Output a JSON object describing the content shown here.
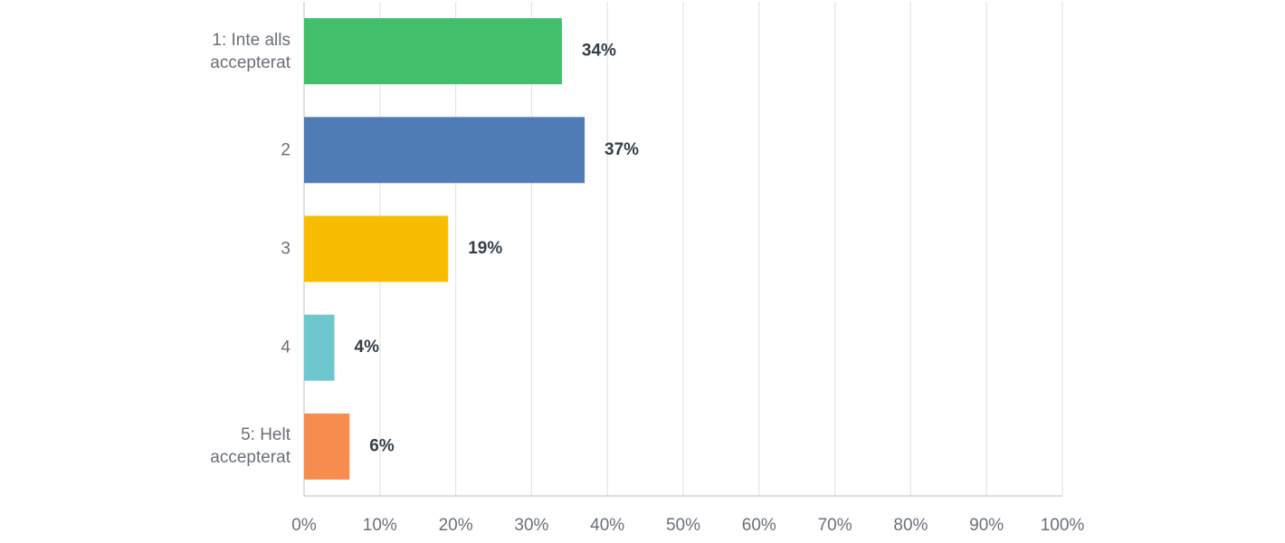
{
  "chart_data": {
    "type": "bar",
    "orientation": "horizontal",
    "categories": [
      "1: Inte alls\naccepterat",
      "2",
      "3",
      "4",
      "5: Helt\naccepterat"
    ],
    "values": [
      34,
      37,
      19,
      4,
      6
    ],
    "value_labels": [
      "34%",
      "37%",
      "19%",
      "4%",
      "6%"
    ],
    "colors": [
      "#41bf6b",
      "#507cb6",
      "#f8bd00",
      "#6cc8cc",
      "#f68d4f"
    ],
    "xlim": [
      0,
      100
    ],
    "xticks": [
      {
        "value": 0,
        "label": "0%"
      },
      {
        "value": 10,
        "label": "10%"
      },
      {
        "value": 20,
        "label": "20%"
      },
      {
        "value": 30,
        "label": "30%"
      },
      {
        "value": 40,
        "label": "40%"
      },
      {
        "value": 50,
        "label": "50%"
      },
      {
        "value": 60,
        "label": "60%"
      },
      {
        "value": 70,
        "label": "70%"
      },
      {
        "value": 80,
        "label": "80%"
      },
      {
        "value": 90,
        "label": "90%"
      },
      {
        "value": 100,
        "label": "100%"
      }
    ],
    "grid": true
  }
}
